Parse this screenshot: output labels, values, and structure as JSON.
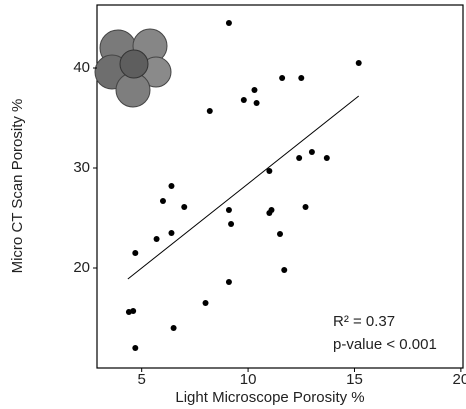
{
  "chart_data": {
    "type": "scatter",
    "x_label": "Light Microscope Porosity %",
    "y_label": "Micro CT Scan Porosity %",
    "annotations": [
      "R² = 0.37",
      "p-value < 0.001"
    ],
    "color": "#000000",
    "x": [
      9.1,
      15.2,
      10.3,
      11.6,
      12.5,
      9.8,
      10.4,
      8.2,
      13.0,
      12.4,
      13.7,
      11.0,
      6.4,
      6.0,
      7.0,
      12.7,
      9.1,
      11.1,
      11.0,
      9.2,
      6.4,
      11.5,
      5.7,
      4.7,
      11.7,
      8.0,
      9.1,
      4.6,
      4.4,
      6.5,
      4.7
    ],
    "y": [
      44.5,
      40.5,
      37.8,
      39.0,
      39.0,
      36.8,
      36.5,
      35.7,
      31.6,
      31.0,
      31.0,
      29.7,
      28.2,
      26.7,
      26.1,
      26.1,
      25.8,
      25.8,
      25.5,
      24.4,
      23.5,
      23.4,
      22.9,
      21.5,
      19.8,
      16.5,
      18.6,
      15.7,
      15.6,
      14.0,
      12.0
    ],
    "fit": {
      "x": [
        4.35,
        15.2
      ],
      "y": [
        18.9,
        37.2
      ],
      "color": "#000000"
    },
    "xlim": [
      2.9,
      20.1
    ],
    "ylim": [
      10,
      46.3
    ],
    "xticks": [
      5,
      10,
      15,
      20
    ],
    "yticks": [
      20,
      30,
      40
    ],
    "grid": false
  }
}
